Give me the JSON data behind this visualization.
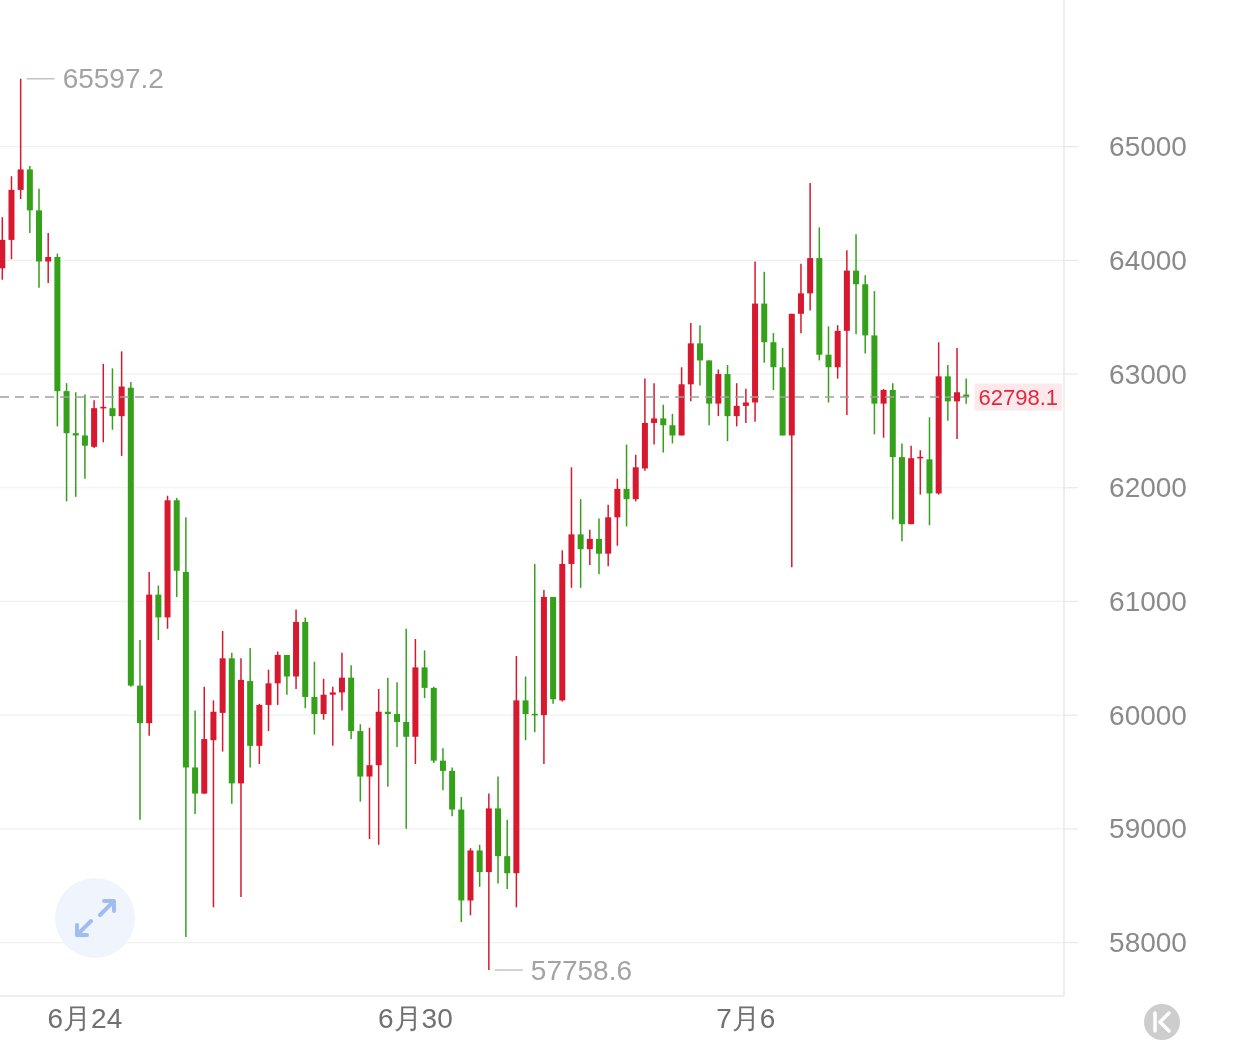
{
  "chart_data": {
    "type": "candlestick",
    "categories": [
      null,
      null,
      null,
      null,
      null,
      null,
      null,
      null,
      null,
      "6月24",
      null,
      null,
      null,
      null,
      null,
      null,
      null,
      null,
      null,
      null,
      null,
      null,
      null,
      null,
      null,
      null,
      null,
      null,
      null,
      null,
      null,
      null,
      null,
      null,
      null,
      null,
      null,
      null,
      null,
      null,
      null,
      null,
      null,
      null,
      null,
      "6月30",
      null,
      null,
      null,
      null,
      null,
      null,
      null,
      null,
      null,
      null,
      null,
      null,
      null,
      null,
      null,
      null,
      null,
      null,
      null,
      null,
      null,
      null,
      null,
      null,
      null,
      null,
      null,
      null,
      null,
      null,
      null,
      null,
      null,
      null,
      null,
      "7月6",
      null,
      null,
      null,
      null,
      null,
      null,
      null,
      null,
      null,
      null,
      null,
      null,
      null,
      null,
      null,
      null,
      null,
      null,
      null,
      null,
      null,
      null,
      null,
      null
    ],
    "ohlc": [
      [
        63930,
        64380,
        63830,
        64180
      ],
      [
        64180,
        64740,
        64010,
        64620
      ],
      [
        64620,
        65597.2,
        64540,
        64800
      ],
      [
        64800,
        64830,
        64240,
        64440
      ],
      [
        64440,
        64630,
        63760,
        63990
      ],
      [
        63990,
        64240,
        63800,
        64030
      ],
      [
        64030,
        64060,
        62540,
        62850
      ],
      [
        62850,
        62920,
        61880,
        62480
      ],
      [
        62480,
        62840,
        61920,
        62460
      ],
      [
        62460,
        62820,
        62080,
        62370
      ],
      [
        62360,
        62770,
        62350,
        62700
      ],
      [
        62700,
        63090,
        62400,
        62710
      ],
      [
        62700,
        63050,
        62510,
        62630
      ],
      [
        62630,
        63200,
        62280,
        62890
      ],
      [
        62880,
        62930,
        60250,
        60260
      ],
      [
        60260,
        60660,
        59080,
        59930
      ],
      [
        59930,
        61260,
        59820,
        61060
      ],
      [
        61060,
        61140,
        60660,
        60860
      ],
      [
        60860,
        61930,
        60760,
        61890
      ],
      [
        61890,
        61910,
        61040,
        61270
      ],
      [
        61260,
        61740,
        58050,
        59540
      ],
      [
        59540,
        60040,
        59130,
        59310
      ],
      [
        59310,
        60250,
        59310,
        59790
      ],
      [
        59780,
        60130,
        58310,
        60030
      ],
      [
        60020,
        60740,
        59680,
        60500
      ],
      [
        60500,
        60550,
        59220,
        59400
      ],
      [
        59400,
        60500,
        58400,
        60310
      ],
      [
        60300,
        60590,
        59540,
        59730
      ],
      [
        59730,
        60100,
        59570,
        60090
      ],
      [
        60090,
        60400,
        59860,
        60280
      ],
      [
        60280,
        60560,
        60090,
        60530
      ],
      [
        60530,
        60530,
        60180,
        60340
      ],
      [
        60340,
        60930,
        60230,
        60820
      ],
      [
        60820,
        60860,
        60060,
        60160
      ],
      [
        60160,
        60470,
        59830,
        60010
      ],
      [
        60010,
        60320,
        59960,
        60180
      ],
      [
        60180,
        60250,
        59730,
        60200
      ],
      [
        60200,
        60550,
        60040,
        60330
      ],
      [
        60330,
        60440,
        59790,
        59860
      ],
      [
        59860,
        59920,
        59240,
        59460
      ],
      [
        59460,
        59890,
        58910,
        59560
      ],
      [
        59560,
        60230,
        58860,
        60030
      ],
      [
        60030,
        60330,
        59370,
        60010
      ],
      [
        60010,
        60290,
        59720,
        59940
      ],
      [
        59940,
        60760,
        59000,
        59810
      ],
      [
        59810,
        60670,
        59570,
        60420
      ],
      [
        60420,
        60570,
        60150,
        60240
      ],
      [
        60240,
        60250,
        59580,
        59600
      ],
      [
        59600,
        59710,
        59340,
        59510
      ],
      [
        59510,
        59540,
        59110,
        59170
      ],
      [
        59170,
        59280,
        58180,
        58370
      ],
      [
        58370,
        58830,
        58240,
        58810
      ],
      [
        58810,
        58860,
        58490,
        58620
      ],
      [
        58620,
        59310,
        57758.6,
        59180
      ],
      [
        59180,
        59460,
        58520,
        58760
      ],
      [
        58760,
        59080,
        58470,
        58610
      ],
      [
        58610,
        60520,
        58310,
        60130
      ],
      [
        60130,
        60340,
        59780,
        60010
      ],
      [
        60010,
        61330,
        59850,
        60000
      ],
      [
        60000,
        61100,
        59570,
        61040
      ],
      [
        61040,
        61040,
        60100,
        60140
      ],
      [
        60130,
        61450,
        60120,
        61330
      ],
      [
        61330,
        62180,
        61120,
        61590
      ],
      [
        61590,
        61900,
        61120,
        61460
      ],
      [
        61460,
        61630,
        61320,
        61550
      ],
      [
        61550,
        61730,
        61240,
        61420
      ],
      [
        61420,
        61850,
        61310,
        61740
      ],
      [
        61740,
        62080,
        61490,
        61990
      ],
      [
        61990,
        62380,
        61660,
        61900
      ],
      [
        61900,
        62290,
        61880,
        62180
      ],
      [
        62170,
        62960,
        62150,
        62570
      ],
      [
        62570,
        62920,
        62380,
        62610
      ],
      [
        62610,
        62730,
        62310,
        62550
      ],
      [
        62550,
        62650,
        62390,
        62460
      ],
      [
        62460,
        63060,
        62460,
        62910
      ],
      [
        62910,
        63450,
        62760,
        63270
      ],
      [
        63270,
        63430,
        62900,
        63120
      ],
      [
        63120,
        63120,
        62550,
        62740
      ],
      [
        62740,
        63040,
        62630,
        63000
      ],
      [
        63000,
        63080,
        62410,
        62630
      ],
      [
        62630,
        62920,
        62540,
        62720
      ],
      [
        62720,
        62870,
        62570,
        62750
      ],
      [
        62750,
        63990,
        62580,
        63620
      ],
      [
        63620,
        63900,
        63100,
        63280
      ],
      [
        63280,
        63360,
        62860,
        63060
      ],
      [
        63060,
        63230,
        62460,
        62460
      ],
      [
        62460,
        63530,
        61300,
        63530
      ],
      [
        63530,
        63970,
        63360,
        63710
      ],
      [
        63710,
        64680,
        63560,
        64020
      ],
      [
        64020,
        64290,
        63120,
        63170
      ],
      [
        63170,
        63420,
        62750,
        63060
      ],
      [
        63060,
        63430,
        62960,
        63380
      ],
      [
        63380,
        64090,
        62640,
        63910
      ],
      [
        63910,
        64230,
        63350,
        63790
      ],
      [
        63790,
        63870,
        63180,
        63340
      ],
      [
        63340,
        63730,
        62470,
        62740
      ],
      [
        62740,
        62870,
        62440,
        62860
      ],
      [
        62860,
        62920,
        61720,
        62270
      ],
      [
        62270,
        62390,
        61530,
        61680
      ],
      [
        61680,
        62370,
        61680,
        62260
      ],
      [
        62260,
        62330,
        61940,
        62270
      ],
      [
        62250,
        62620,
        61670,
        61950
      ],
      [
        61950,
        63280,
        61940,
        62980
      ],
      [
        62980,
        63080,
        62590,
        62760
      ],
      [
        62760,
        63230,
        62430,
        62840
      ],
      [
        62820,
        62960,
        62740,
        62798.1
      ]
    ],
    "colors": [
      "#d7192f",
      "#d7192f",
      "#d7192f",
      "#35a11b",
      "#35a11b",
      "#d7192f",
      "#35a11b",
      "#35a11b",
      "#35a11b",
      "#35a11b",
      "#d7192f",
      "#d7192f",
      "#35a11b",
      "#d7192f",
      "#35a11b",
      "#35a11b",
      "#d7192f",
      "#35a11b",
      "#d7192f",
      "#35a11b",
      "#35a11b",
      "#35a11b",
      "#d7192f",
      "#d7192f",
      "#d7192f",
      "#35a11b",
      "#d7192f",
      "#35a11b",
      "#d7192f",
      "#d7192f",
      "#d7192f",
      "#35a11b",
      "#d7192f",
      "#35a11b",
      "#35a11b",
      "#d7192f",
      "#d7192f",
      "#d7192f",
      "#35a11b",
      "#35a11b",
      "#d7192f",
      "#d7192f",
      "#35a11b",
      "#35a11b",
      "#35a11b",
      "#d7192f",
      "#35a11b",
      "#35a11b",
      "#35a11b",
      "#35a11b",
      "#35a11b",
      "#d7192f",
      "#35a11b",
      "#d7192f",
      "#35a11b",
      "#35a11b",
      "#d7192f",
      "#35a11b",
      "#35a11b",
      "#d7192f",
      "#35a11b",
      "#d7192f",
      "#d7192f",
      "#35a11b",
      "#d7192f",
      "#35a11b",
      "#d7192f",
      "#d7192f",
      "#35a11b",
      "#d7192f",
      "#d7192f",
      "#d7192f",
      "#35a11b",
      "#35a11b",
      "#d7192f",
      "#d7192f",
      "#35a11b",
      "#35a11b",
      "#d7192f",
      "#35a11b",
      "#d7192f",
      "#d7192f",
      "#d7192f",
      "#35a11b",
      "#35a11b",
      "#35a11b",
      "#d7192f",
      "#d7192f",
      "#d7192f",
      "#35a11b",
      "#35a11b",
      "#d7192f",
      "#d7192f",
      "#35a11b",
      "#35a11b",
      "#35a11b",
      "#d7192f",
      "#35a11b",
      "#35a11b",
      "#d7192f",
      "#d7192f",
      "#35a11b",
      "#d7192f",
      "#35a11b",
      "#d7192f",
      "#35a11b"
    ],
    "ylim": [
      57530,
      66290
    ],
    "yticks": [
      58000,
      59000,
      60000,
      61000,
      62000,
      63000,
      64000,
      65000
    ],
    "grid": "y",
    "annotations": [
      "65597.2",
      "57758.6"
    ],
    "ref_lines": [
      {
        "axis": "y",
        "value": 62798.1,
        "label": "62798.1",
        "color": "#a0a0a0",
        "line_style": "dashed"
      }
    ]
  }
}
